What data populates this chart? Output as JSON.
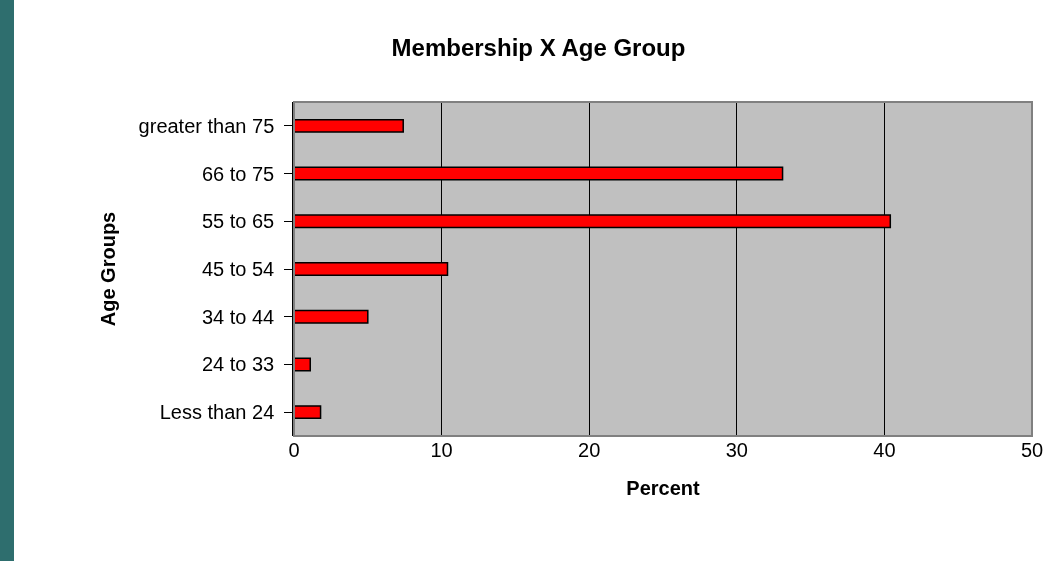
{
  "chart_data": {
    "type": "bar",
    "orientation": "horizontal",
    "title": "Membership X Age Group",
    "xlabel": "Percent",
    "ylabel": "Age Groups",
    "categories": [
      "greater than 75",
      "66 to 75",
      "55 to 65",
      "45 to 54",
      "34 to 44",
      "24 to 33",
      "Less than 24"
    ],
    "values": [
      7.4,
      33.1,
      40.4,
      10.4,
      5.0,
      1.1,
      1.8
    ],
    "color": "#ff0000",
    "xlim": [
      0,
      50
    ],
    "xticks": [
      0,
      10,
      20,
      30,
      40,
      50
    ],
    "grid": "x"
  }
}
